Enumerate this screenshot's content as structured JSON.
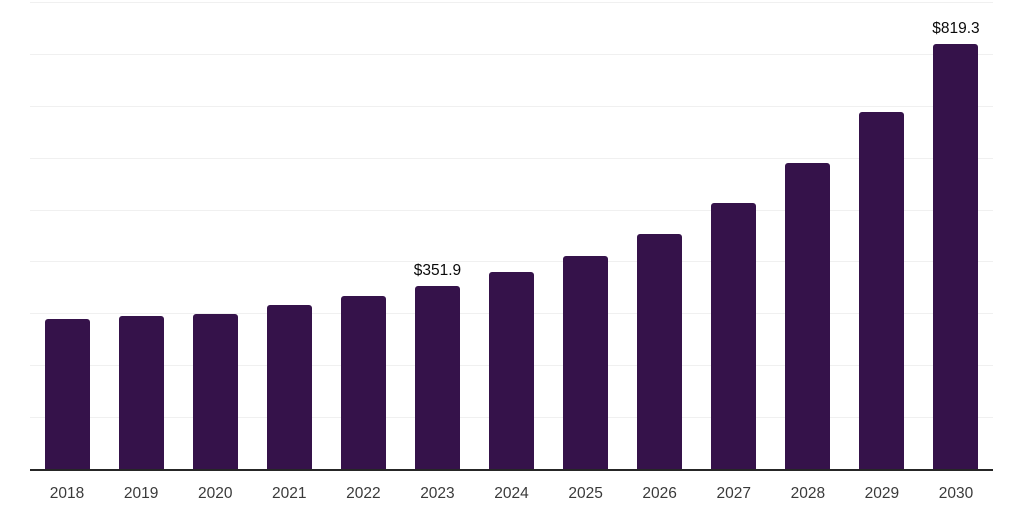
{
  "chart": {
    "background_color": "#ffffff",
    "bar_color": "#35124a",
    "gridline_color": "#f0f0f0",
    "axis_line_color": "#262626",
    "tick_label_color": "#3a3a3a",
    "value_label_color": "#0a0a0a"
  },
  "chart_data": {
    "type": "bar",
    "categories": [
      "2018",
      "2019",
      "2020",
      "2021",
      "2022",
      "2023",
      "2024",
      "2025",
      "2026",
      "2027",
      "2028",
      "2029",
      "2030"
    ],
    "values": [
      289.4,
      295.7,
      299.5,
      316.8,
      332.7,
      351.9,
      378.8,
      410.8,
      453.8,
      512.3,
      589.4,
      687.9,
      819.3
    ],
    "value_labels": [
      "",
      "",
      "",
      "",
      "",
      "$351.9",
      "",
      "",
      "",
      "",
      "",
      "",
      "$819.3"
    ],
    "labeled_points": [
      {
        "category": "2023",
        "label": "$351.9",
        "value": 351.9
      },
      {
        "category": "2030",
        "label": "$819.3",
        "value": 819.3
      }
    ],
    "ylim": [
      0,
      900
    ],
    "grid_step": 100,
    "grid": "horizontal",
    "legend": "none",
    "y_axis_tick_labels_visible": false
  }
}
